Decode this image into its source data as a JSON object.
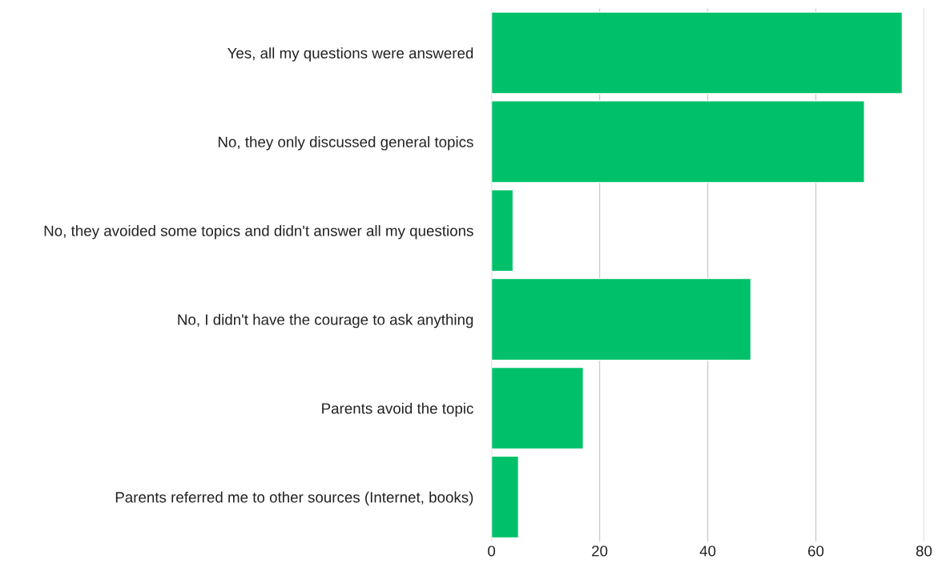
{
  "chart_data": {
    "type": "bar",
    "orientation": "horizontal",
    "categories": [
      "Yes, all my questions were answered",
      "No, they only discussed general topics",
      "No, they avoided some topics and didn't answer all my questions",
      "No, I didn't have the courage to ask anything",
      "Parents avoid the topic",
      "Parents referred me to other sources (Internet, books)"
    ],
    "values": [
      76,
      69,
      4,
      48,
      17,
      5
    ],
    "color": "#00c16a",
    "xlim": [
      0,
      80
    ],
    "xticks": [
      0,
      20,
      40,
      60,
      80
    ],
    "grid": "x",
    "legend": false
  }
}
